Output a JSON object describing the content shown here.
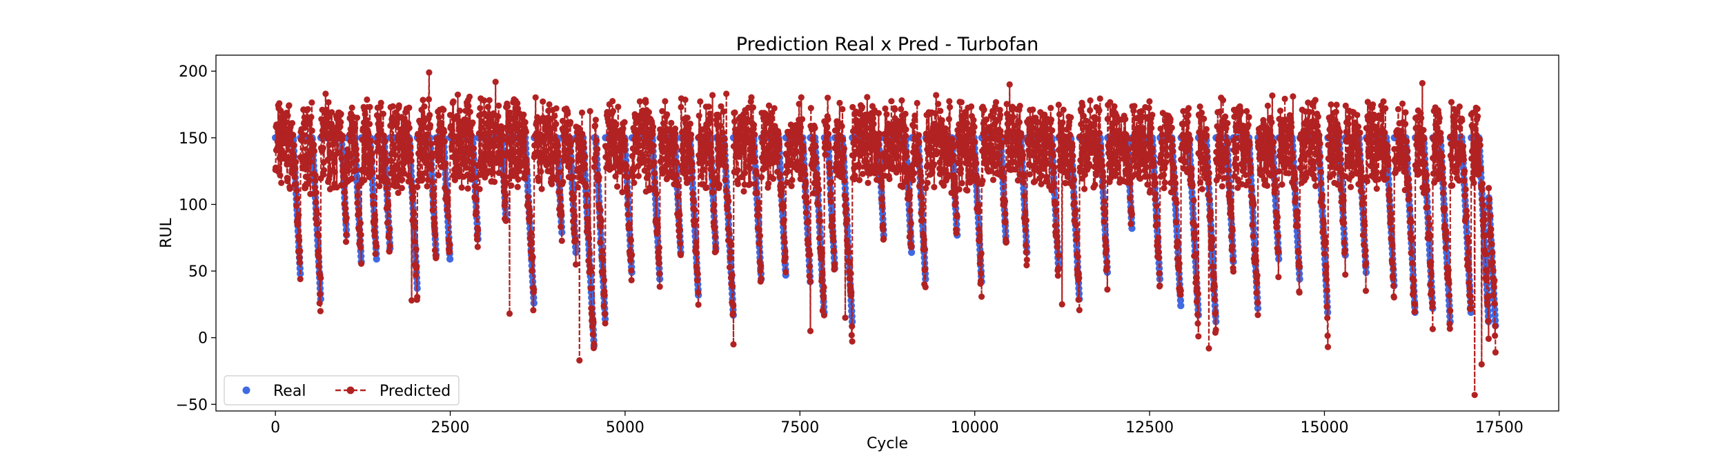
{
  "chart_data": {
    "type": "line",
    "title": "Prediction Real x Pred - Turbofan",
    "xlabel": "Cycle",
    "ylabel": "RUL",
    "xlim": [
      -850,
      18350
    ],
    "ylim": [
      -55,
      212
    ],
    "xticks": [
      0,
      2500,
      5000,
      7500,
      10000,
      12500,
      15000,
      17500
    ],
    "yticks": [
      -50,
      0,
      50,
      100,
      150,
      200
    ],
    "grid": false,
    "legend_position": "lower-left",
    "x_range": [
      0,
      17500
    ],
    "series": [
      {
        "name": "Real",
        "style": "scatter",
        "color": "#4169E1",
        "cap": 150,
        "units": [
          [
            0,
            360,
            44
          ],
          [
            360,
            650,
            27
          ],
          [
            650,
            1020,
            75
          ],
          [
            1020,
            1230,
            55
          ],
          [
            1230,
            1450,
            55
          ],
          [
            1450,
            1640,
            65
          ],
          [
            1640,
            2030,
            35
          ],
          [
            2030,
            2300,
            60
          ],
          [
            2300,
            2500,
            55
          ],
          [
            2500,
            2900,
            70
          ],
          [
            2900,
            3300,
            85
          ],
          [
            3300,
            3700,
            22
          ],
          [
            3700,
            4100,
            75
          ],
          [
            4100,
            4300,
            60
          ],
          [
            4300,
            4560,
            -10
          ],
          [
            4560,
            4720,
            10
          ],
          [
            4720,
            5100,
            45
          ],
          [
            5100,
            5500,
            40
          ],
          [
            5500,
            5800,
            60
          ],
          [
            5800,
            6050,
            30
          ],
          [
            6050,
            6300,
            65
          ],
          [
            6300,
            6550,
            15
          ],
          [
            6550,
            6950,
            40
          ],
          [
            6950,
            7300,
            45
          ],
          [
            7300,
            7650,
            40
          ],
          [
            7650,
            7850,
            15
          ],
          [
            7850,
            8000,
            50
          ],
          [
            8000,
            8250,
            10
          ],
          [
            8250,
            8700,
            75
          ],
          [
            8700,
            9100,
            60
          ],
          [
            9100,
            9300,
            40
          ],
          [
            9300,
            9750,
            75
          ],
          [
            9750,
            10100,
            40
          ],
          [
            10100,
            10450,
            70
          ],
          [
            10450,
            10750,
            60
          ],
          [
            10750,
            11200,
            50
          ],
          [
            11200,
            11500,
            25
          ],
          [
            11500,
            11900,
            45
          ],
          [
            11900,
            12250,
            80
          ],
          [
            12250,
            12650,
            40
          ],
          [
            12650,
            12950,
            20
          ],
          [
            12950,
            13200,
            15
          ],
          [
            13200,
            13450,
            10
          ],
          [
            13450,
            13700,
            55
          ],
          [
            13700,
            14050,
            20
          ],
          [
            14050,
            14350,
            55
          ],
          [
            14350,
            14650,
            40
          ],
          [
            14650,
            15050,
            15
          ],
          [
            15050,
            15300,
            60
          ],
          [
            15300,
            15600,
            45
          ],
          [
            15600,
            16000,
            35
          ],
          [
            16000,
            16300,
            15
          ],
          [
            16300,
            16550,
            20
          ],
          [
            16550,
            16800,
            10
          ],
          [
            16800,
            17100,
            15
          ],
          [
            17100,
            17350,
            10
          ],
          [
            17350,
            17450,
            5
          ]
        ]
      },
      {
        "name": "Predicted",
        "style": "line-marker-dashed",
        "color": "#B22222",
        "spikes": [
          [
            3150,
            192
          ],
          [
            2200,
            199
          ],
          [
            10500,
            190
          ],
          [
            16400,
            191
          ],
          [
            6450,
            183
          ],
          [
            6250,
            182
          ],
          [
            9450,
            182
          ],
          [
            14550,
            181
          ],
          [
            7900,
            180
          ],
          [
            1170,
            165
          ],
          [
            720,
            183
          ],
          [
            4500,
            170
          ]
        ],
        "dips": [
          [
            4350,
            -17
          ],
          [
            6550,
            -5
          ],
          [
            13350,
            -8
          ],
          [
            15050,
            -7
          ],
          [
            17250,
            -20
          ],
          [
            17150,
            -43
          ],
          [
            17450,
            -11
          ],
          [
            3350,
            18
          ],
          [
            1950,
            28
          ],
          [
            11250,
            25
          ],
          [
            8150,
            15
          ],
          [
            7650,
            5
          ]
        ]
      }
    ]
  }
}
